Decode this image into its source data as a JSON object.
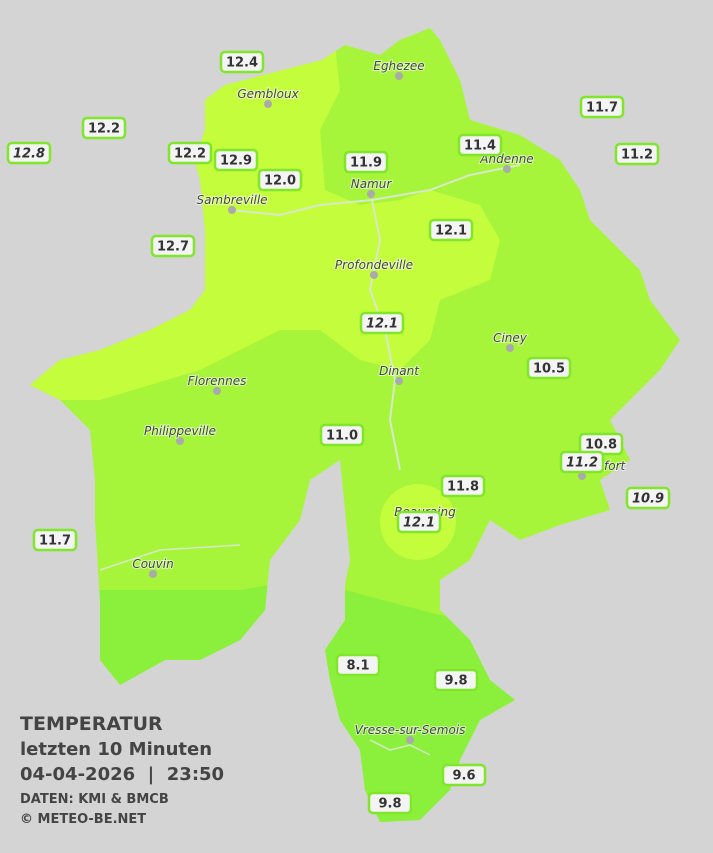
{
  "legend": {
    "title": "TEMPERATUR",
    "period": "letzten 10 Minuten",
    "datetime": "04-04-2026  |  23:50",
    "source": "DATEN: KMI & BMCB",
    "copyright": "© METEO-BE.NET"
  },
  "cities": [
    {
      "name": "Eghezee"
    },
    {
      "name": "Gembloux"
    },
    {
      "name": "Andenne"
    },
    {
      "name": "Namur"
    },
    {
      "name": "Sambreville"
    },
    {
      "name": "Profondeville"
    },
    {
      "name": "Ciney"
    },
    {
      "name": "Dinant"
    },
    {
      "name": "Florennes"
    },
    {
      "name": "Philippeville"
    },
    {
      "name": "Rochefort"
    },
    {
      "name": "Beauraing"
    },
    {
      "name": "Couvin"
    },
    {
      "name": "Vresse-sur-Semois"
    }
  ],
  "stations": [
    {
      "label": "12.4",
      "italic": false
    },
    {
      "label": "12.2",
      "italic": false
    },
    {
      "label": "12.8",
      "italic": true
    },
    {
      "label": "12.2",
      "italic": false
    },
    {
      "label": "12.9",
      "italic": false
    },
    {
      "label": "12.0",
      "italic": false
    },
    {
      "label": "11.9",
      "italic": false
    },
    {
      "label": "11.4",
      "italic": false
    },
    {
      "label": "11.7",
      "italic": false
    },
    {
      "label": "11.2",
      "italic": false
    },
    {
      "label": "12.7",
      "italic": false
    },
    {
      "label": "12.1",
      "italic": false
    },
    {
      "label": "12.1",
      "italic": true
    },
    {
      "label": "10.5",
      "italic": false
    },
    {
      "label": "11.0",
      "italic": false
    },
    {
      "label": "10.8",
      "italic": false
    },
    {
      "label": "11.2",
      "italic": true
    },
    {
      "label": "10.9",
      "italic": true
    },
    {
      "label": "11.8",
      "italic": false
    },
    {
      "label": "12.1",
      "italic": true
    },
    {
      "label": "11.7",
      "italic": false
    },
    {
      "label": "8.1",
      "italic": false
    },
    {
      "label": "9.8",
      "italic": false
    },
    {
      "label": "9.6",
      "italic": false
    },
    {
      "label": "9.8",
      "italic": false
    }
  ]
}
